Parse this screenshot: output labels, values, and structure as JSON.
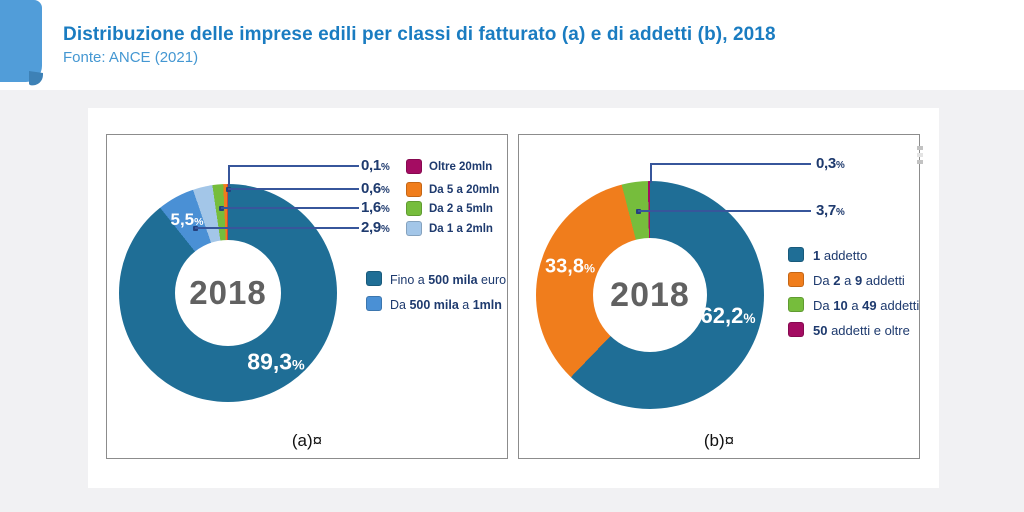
{
  "percent_sign": "%",
  "header": {
    "title": "Distribuzione delle imprese edili per classi di fatturato (a) e di addetti (b), 2018",
    "source": "Fonte: ANCE (2021)"
  },
  "colors": {
    "accent_title": "#1a7cc1",
    "accent_source": "#4497d2",
    "tab_blue": "#519dd9",
    "navy_text": "#1e3a6e",
    "teal": "#1f6e96",
    "medium_blue": "#4a90d5",
    "light_blue": "#a3c6e8",
    "green": "#76bd3c",
    "orange": "#f07d1c",
    "magenta": "#a40c62"
  },
  "chart_data": [
    {
      "type": "donut",
      "center_label": "2018",
      "caption": "(a)¤",
      "legend_position": "right",
      "slices": [
        {
          "label": "Fino a 500 mila euro",
          "rich": "Fino a **500 mila** euro",
          "value": 89.3,
          "text": "89,3",
          "color": "#1f6e96"
        },
        {
          "label": "Da 500 mila a 1mln",
          "rich": "Da **500 mila** a **1mln**",
          "value": 5.5,
          "text": "5,5",
          "color": "#4a90d5"
        },
        {
          "label": "Da 1 a 2mln",
          "value": 2.9,
          "text": "2,9",
          "color": "#a3c6e8"
        },
        {
          "label": "Da 2 a 5mln",
          "value": 1.6,
          "text": "1,6",
          "color": "#76bd3c"
        },
        {
          "label": "Da 5 a 20mln",
          "value": 0.6,
          "text": "0,6",
          "color": "#f07d1c"
        },
        {
          "label": "Oltre 20mln",
          "value": 0.1,
          "text": "0,1",
          "color": "#a40c62"
        }
      ]
    },
    {
      "type": "donut",
      "center_label": "2018",
      "caption": "(b)¤",
      "legend_position": "right",
      "slices": [
        {
          "label": "1 addetto",
          "rich": "**1** addetto",
          "value": 62.2,
          "text": "62,2",
          "color": "#1f6e96"
        },
        {
          "label": "Da 2 a 9 addetti",
          "rich": "Da **2** a **9** addetti",
          "value": 33.8,
          "text": "33,8",
          "color": "#f07d1c"
        },
        {
          "label": "Da 10 a 49 addetti",
          "rich": "Da **10** a **49** addetti",
          "value": 3.7,
          "text": "3,7",
          "color": "#76bd3c"
        },
        {
          "label": "50 addetti e oltre",
          "rich": "**50** addetti e oltre",
          "value": 0.3,
          "text": "0,3",
          "color": "#a40c62"
        }
      ]
    }
  ]
}
